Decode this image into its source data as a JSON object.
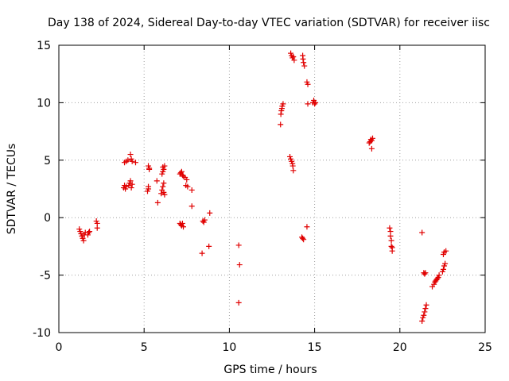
{
  "chart_data": {
    "type": "scatter",
    "title": "Day 138 of 2024, Sidereal Day-to-day VTEC variation (SDTVAR) for receiver iisc",
    "xlabel": "GPS time / hours",
    "ylabel": "SDTVAR / TECUs",
    "xlim": [
      0,
      25
    ],
    "ylim": [
      -10,
      15
    ],
    "x_ticks": [
      0,
      5,
      10,
      15,
      20,
      25
    ],
    "x_tick_labels": [
      "0",
      "5",
      "10",
      "15",
      "20",
      "25"
    ],
    "y_ticks": [
      -10,
      -5,
      0,
      5,
      10,
      15
    ],
    "y_tick_labels": [
      "-10",
      "-5",
      "0",
      "5",
      "10",
      "15"
    ],
    "grid": true,
    "marker": "+",
    "marker_color": "#e00000",
    "series": [
      {
        "name": "SDTVAR",
        "points": [
          [
            1.2,
            -1.0
          ],
          [
            1.25,
            -1.2
          ],
          [
            1.3,
            -1.4
          ],
          [
            1.35,
            -1.6
          ],
          [
            1.4,
            -1.8
          ],
          [
            1.45,
            -2.0
          ],
          [
            1.5,
            -1.5
          ],
          [
            1.55,
            -1.3
          ],
          [
            1.7,
            -1.5
          ],
          [
            1.75,
            -1.3
          ],
          [
            1.8,
            -1.2
          ],
          [
            2.2,
            -0.3
          ],
          [
            2.25,
            -0.5
          ],
          [
            2.25,
            -0.9
          ],
          [
            3.8,
            2.6
          ],
          [
            3.85,
            2.8
          ],
          [
            3.9,
            2.5
          ],
          [
            3.95,
            2.7
          ],
          [
            3.85,
            4.8
          ],
          [
            3.95,
            4.9
          ],
          [
            4.05,
            5.0
          ],
          [
            4.1,
            2.8
          ],
          [
            4.15,
            3.0
          ],
          [
            4.2,
            3.2
          ],
          [
            4.25,
            2.6
          ],
          [
            4.3,
            2.9
          ],
          [
            4.25,
            5.1
          ],
          [
            4.2,
            5.5
          ],
          [
            4.3,
            4.9
          ],
          [
            4.5,
            4.8
          ],
          [
            5.2,
            2.3
          ],
          [
            5.25,
            2.5
          ],
          [
            5.25,
            2.7
          ],
          [
            5.3,
            4.2
          ],
          [
            5.25,
            4.5
          ],
          [
            5.3,
            4.3
          ],
          [
            5.8,
            1.3
          ],
          [
            5.75,
            3.2
          ],
          [
            6.0,
            2.1
          ],
          [
            6.05,
            2.4
          ],
          [
            6.1,
            2.7
          ],
          [
            6.15,
            3.0
          ],
          [
            6.05,
            3.8
          ],
          [
            6.1,
            4.0
          ],
          [
            6.15,
            4.2
          ],
          [
            6.2,
            4.5
          ],
          [
            6.1,
            4.4
          ],
          [
            6.2,
            2.0
          ],
          [
            6.15,
            2.2
          ],
          [
            7.1,
            -0.5
          ],
          [
            7.15,
            -0.6
          ],
          [
            7.2,
            -0.7
          ],
          [
            7.25,
            -0.5
          ],
          [
            7.3,
            -0.8
          ],
          [
            7.1,
            3.8
          ],
          [
            7.15,
            3.9
          ],
          [
            7.2,
            4.0
          ],
          [
            7.25,
            3.7
          ],
          [
            7.3,
            3.6
          ],
          [
            7.4,
            3.5
          ],
          [
            7.5,
            3.3
          ],
          [
            7.45,
            2.8
          ],
          [
            7.55,
            2.7
          ],
          [
            7.8,
            2.4
          ],
          [
            7.8,
            1.0
          ],
          [
            8.4,
            -3.1
          ],
          [
            8.45,
            -0.3
          ],
          [
            8.5,
            -0.4
          ],
          [
            8.55,
            -0.2
          ],
          [
            8.8,
            -2.5
          ],
          [
            8.85,
            0.4
          ],
          [
            10.55,
            -2.4
          ],
          [
            10.6,
            -4.1
          ],
          [
            10.55,
            -7.4
          ],
          [
            13.0,
            8.1
          ],
          [
            13.02,
            9.0
          ],
          [
            13.05,
            9.3
          ],
          [
            13.08,
            9.5
          ],
          [
            13.1,
            9.7
          ],
          [
            13.15,
            9.9
          ],
          [
            13.6,
            14.3
          ],
          [
            13.65,
            14.1
          ],
          [
            13.7,
            13.9
          ],
          [
            13.75,
            14.0
          ],
          [
            13.8,
            13.7
          ],
          [
            13.55,
            5.3
          ],
          [
            13.6,
            5.1
          ],
          [
            13.65,
            4.9
          ],
          [
            13.7,
            4.7
          ],
          [
            13.72,
            4.5
          ],
          [
            13.75,
            4.1
          ],
          [
            14.3,
            14.1
          ],
          [
            14.32,
            13.8
          ],
          [
            14.35,
            13.5
          ],
          [
            14.4,
            13.2
          ],
          [
            14.25,
            -1.7
          ],
          [
            14.3,
            -1.8
          ],
          [
            14.35,
            -1.9
          ],
          [
            14.55,
            11.8
          ],
          [
            14.6,
            11.6
          ],
          [
            14.6,
            9.9
          ],
          [
            14.55,
            -0.8
          ],
          [
            14.9,
            10.0
          ],
          [
            14.95,
            10.2
          ],
          [
            15.0,
            9.9
          ],
          [
            15.05,
            10.0
          ],
          [
            18.2,
            6.5
          ],
          [
            18.25,
            6.6
          ],
          [
            18.3,
            6.8
          ],
          [
            18.35,
            6.7
          ],
          [
            18.4,
            6.9
          ],
          [
            18.35,
            6.0
          ],
          [
            19.4,
            -0.9
          ],
          [
            19.45,
            -1.2
          ],
          [
            19.45,
            -1.6
          ],
          [
            19.5,
            -2.0
          ],
          [
            19.5,
            -2.5
          ],
          [
            19.55,
            -2.6
          ],
          [
            19.55,
            -2.9
          ],
          [
            21.3,
            -1.3
          ],
          [
            21.4,
            -4.8
          ],
          [
            21.45,
            -4.9
          ],
          [
            21.5,
            -4.8
          ],
          [
            21.3,
            -9.0
          ],
          [
            21.35,
            -8.7
          ],
          [
            21.4,
            -8.5
          ],
          [
            21.45,
            -8.2
          ],
          [
            21.5,
            -7.9
          ],
          [
            21.55,
            -7.6
          ],
          [
            21.9,
            -6.0
          ],
          [
            22.0,
            -5.8
          ],
          [
            22.05,
            -5.6
          ],
          [
            22.1,
            -5.5
          ],
          [
            22.15,
            -5.4
          ],
          [
            22.2,
            -5.3
          ],
          [
            22.25,
            -5.2
          ],
          [
            22.3,
            -5.0
          ],
          [
            22.5,
            -4.7
          ],
          [
            22.55,
            -4.5
          ],
          [
            22.6,
            -4.2
          ],
          [
            22.65,
            -4.0
          ],
          [
            22.55,
            -3.2
          ],
          [
            22.6,
            -3.0
          ],
          [
            22.7,
            -2.9
          ]
        ]
      }
    ]
  }
}
